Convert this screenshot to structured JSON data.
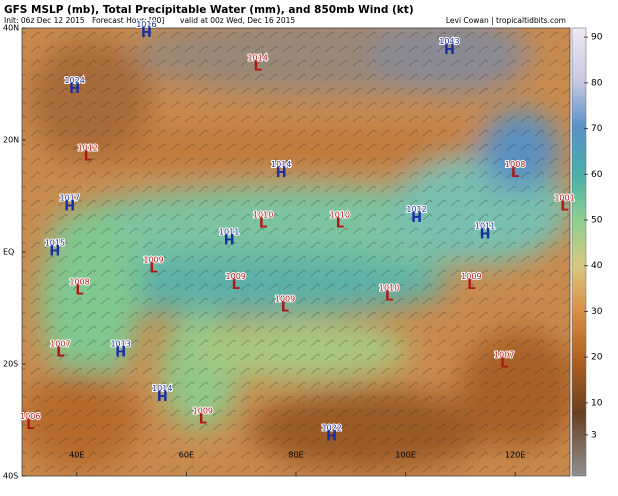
{
  "title": "GFS MSLP (mb), Total Precipitable Water (mm), and 850mb Wind (kt)",
  "init": "Init: 06z Dec 12 2015",
  "forecast_hour": "Forecast Hour: [90]",
  "valid": "valid at 00z Wed, Dec 16 2015",
  "credit": "Levi Cowan | tropicaltidbits.com",
  "map": {
    "lonlim": [
      30,
      130
    ],
    "latlim": [
      -40,
      40
    ],
    "lonticks": [
      {
        "value": 40,
        "label": "40E"
      },
      {
        "value": 60,
        "label": "60E"
      },
      {
        "value": 80,
        "label": "80E"
      },
      {
        "value": 100,
        "label": "100E"
      },
      {
        "value": 120,
        "label": "120E"
      }
    ],
    "latticks": [
      {
        "value": 40,
        "label": "40N"
      },
      {
        "value": 20,
        "label": "20N"
      },
      {
        "value": 0,
        "label": "EQ"
      },
      {
        "value": -20,
        "label": "20S"
      },
      {
        "value": -40,
        "label": "40S"
      }
    ],
    "centers": [
      {
        "kind": "H",
        "value": 1016,
        "lon": 52.7,
        "lat": 39
      },
      {
        "kind": "H",
        "value": 1043,
        "lon": 108,
        "lat": 36
      },
      {
        "kind": "L",
        "value": 1014,
        "lon": 73,
        "lat": 33
      },
      {
        "kind": "H",
        "value": 1024,
        "lon": 39.6,
        "lat": 29
      },
      {
        "kind": "L",
        "value": 1012,
        "lon": 42,
        "lat": 17
      },
      {
        "kind": "H",
        "value": 1014,
        "lon": 77.3,
        "lat": 14
      },
      {
        "kind": "L",
        "value": 1008,
        "lon": 120,
        "lat": 14
      },
      {
        "kind": "H",
        "value": 1017,
        "lon": 38.7,
        "lat": 8
      },
      {
        "kind": "L",
        "value": 1010,
        "lon": 74,
        "lat": 5
      },
      {
        "kind": "L",
        "value": 1010,
        "lon": 88,
        "lat": 5
      },
      {
        "kind": "H",
        "value": 1012,
        "lon": 102,
        "lat": 6
      },
      {
        "kind": "L",
        "value": 1001,
        "lon": 129,
        "lat": 8
      },
      {
        "kind": "H",
        "value": 1011,
        "lon": 67.8,
        "lat": 2
      },
      {
        "kind": "H",
        "value": 1011,
        "lon": 114.5,
        "lat": 3
      },
      {
        "kind": "H",
        "value": 1015,
        "lon": 36,
        "lat": 0
      },
      {
        "kind": "L",
        "value": 1009,
        "lon": 54,
        "lat": -3
      },
      {
        "kind": "L",
        "value": 1009,
        "lon": 69,
        "lat": -6
      },
      {
        "kind": "L",
        "value": 1008,
        "lon": 40.5,
        "lat": -7
      },
      {
        "kind": "L",
        "value": 1010,
        "lon": 97,
        "lat": -8
      },
      {
        "kind": "L",
        "value": 1009,
        "lon": 112,
        "lat": -6
      },
      {
        "kind": "L",
        "value": 1009,
        "lon": 78,
        "lat": -10
      },
      {
        "kind": "L",
        "value": 1007,
        "lon": 37,
        "lat": -18
      },
      {
        "kind": "H",
        "value": 1013,
        "lon": 48,
        "lat": -18
      },
      {
        "kind": "L",
        "value": 1007,
        "lon": 118,
        "lat": -20
      },
      {
        "kind": "H",
        "value": 1014,
        "lon": 55.6,
        "lat": -26
      },
      {
        "kind": "L",
        "value": 1006,
        "lon": 31.5,
        "lat": -31
      },
      {
        "kind": "L",
        "value": 1009,
        "lon": 63,
        "lat": -30
      },
      {
        "kind": "H",
        "value": 1022,
        "lon": 86.5,
        "lat": -33
      }
    ]
  },
  "colorbar": {
    "lim": [
      -6,
      92
    ],
    "ticks": [
      90,
      80,
      70,
      60,
      50,
      40,
      30,
      20,
      10,
      3
    ]
  }
}
